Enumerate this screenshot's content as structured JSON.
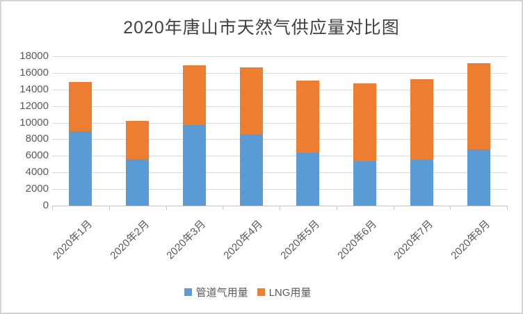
{
  "frame": {
    "border_color": "#d3d3d3",
    "background": "#ffffff"
  },
  "chart_data": {
    "type": "bar",
    "stacked": true,
    "title": "2020年唐山市天然气供应量对比图",
    "categories": [
      "2020年1月",
      "2020年2月",
      "2020年3月",
      "2020年4月",
      "2020年5月",
      "2020年6月",
      "2020年7月",
      "2020年8月"
    ],
    "series": [
      {
        "name": "管道气用量",
        "color": "#5B9BD5",
        "values": [
          9000,
          5600,
          9700,
          8600,
          6400,
          5400,
          5500,
          6800
        ]
      },
      {
        "name": "LNG用量",
        "color": "#ED7D31",
        "values": [
          5900,
          4600,
          7200,
          8100,
          8700,
          9300,
          9700,
          10400
        ]
      }
    ],
    "stacked_totals": [
      14900,
      10200,
      16900,
      16700,
      15100,
      14700,
      15200,
      17200
    ],
    "xlabel": "",
    "ylabel": "",
    "ylim": [
      0,
      18000
    ],
    "ytick_step": 2000,
    "grid": true,
    "legend_position": "bottom",
    "title_color": "#404040",
    "axis_text_color": "#595959",
    "gridline_color": "#d9d9d9",
    "axis_line_color": "#c6c6c6"
  }
}
